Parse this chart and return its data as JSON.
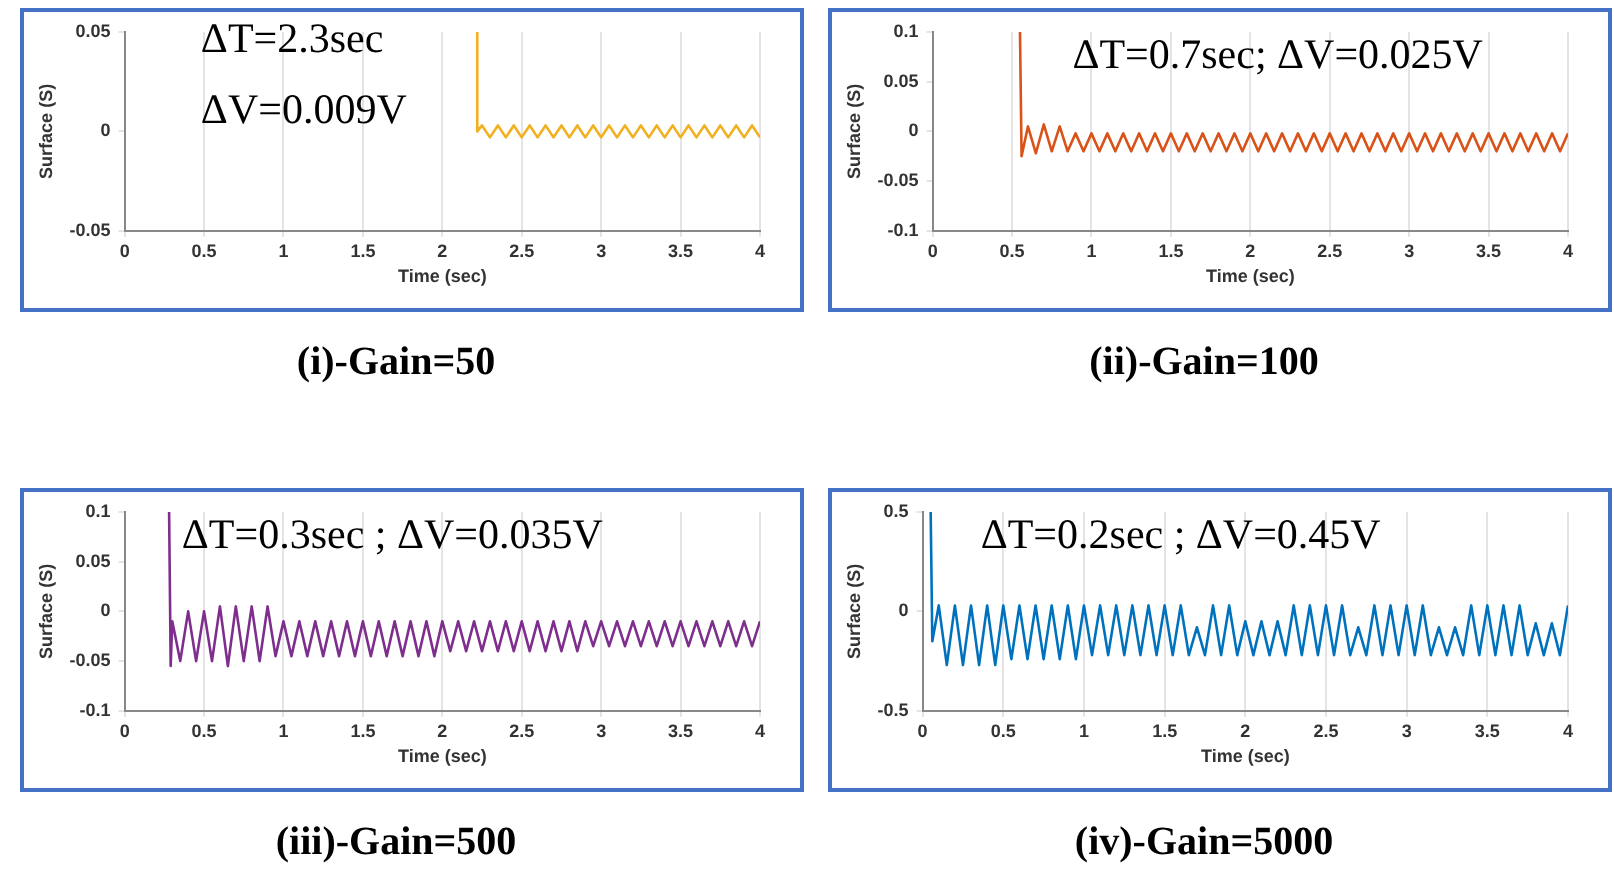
{
  "chart_data": [
    {
      "type": "line",
      "title": "(i)-Gain=50",
      "xlabel": "Time (sec)",
      "ylabel": "Surface (S)",
      "annotations": [
        "ΔT=2.3sec",
        "ΔV=0.009V"
      ],
      "xlim": [
        0,
        4
      ],
      "xticks": [
        0,
        0.5,
        1,
        1.5,
        2,
        2.5,
        3,
        3.5,
        4
      ],
      "ylim": [
        -0.05,
        0.05
      ],
      "yticks": [
        -0.05,
        0,
        0.05
      ],
      "grid": "x",
      "marker": "none",
      "x": [
        2.22,
        2.22,
        2.25,
        2.3,
        2.35,
        2.4,
        2.45,
        2.5,
        2.55,
        2.6,
        2.65,
        2.7,
        2.75,
        2.8,
        2.85,
        2.9,
        2.95,
        3,
        3.05,
        3.1,
        3.15,
        3.2,
        3.25,
        3.3,
        3.35,
        3.4,
        3.45,
        3.5,
        3.55,
        3.6,
        3.65,
        3.7,
        3.75,
        3.8,
        3.85,
        3.9,
        3.95,
        4
      ],
      "series": [
        {
          "color": "#f0b020",
          "values": [
            0.05,
            0,
            0.003,
            -0.003,
            0.003,
            -0.003,
            0.003,
            -0.003,
            0.003,
            -0.003,
            0.003,
            -0.003,
            0.003,
            -0.003,
            0.003,
            -0.003,
            0.003,
            -0.003,
            0.003,
            -0.003,
            0.003,
            -0.003,
            0.003,
            -0.003,
            0.003,
            -0.003,
            0.003,
            -0.003,
            0.003,
            -0.003,
            0.003,
            -0.003,
            0.003,
            -0.003,
            0.003,
            -0.003,
            0.003,
            -0.003
          ]
        }
      ]
    },
    {
      "type": "line",
      "title": "(ii)-Gain=100",
      "xlabel": "Time (sec)",
      "ylabel": "Surface (S)",
      "annotations": [
        "ΔT=0.7sec; ΔV=0.025V"
      ],
      "xlim": [
        0,
        4
      ],
      "xticks": [
        0,
        0.5,
        1,
        1.5,
        2,
        2.5,
        3,
        3.5,
        4
      ],
      "ylim": [
        -0.1,
        0.1
      ],
      "yticks": [
        -0.1,
        -0.05,
        0,
        0.05,
        0.1
      ],
      "grid": "x",
      "marker": "none",
      "x": [
        0.55,
        0.56,
        0.6,
        0.65,
        0.7,
        0.75,
        0.8,
        0.85,
        0.9,
        0.95,
        1,
        1.05,
        1.1,
        1.15,
        1.2,
        1.25,
        1.3,
        1.35,
        1.4,
        1.45,
        1.5,
        1.55,
        1.6,
        1.65,
        1.7,
        1.75,
        1.8,
        1.85,
        1.9,
        1.95,
        2,
        2.05,
        2.1,
        2.15,
        2.2,
        2.25,
        2.3,
        2.35,
        2.4,
        2.45,
        2.5,
        2.55,
        2.6,
        2.65,
        2.7,
        2.75,
        2.8,
        2.85,
        2.9,
        2.95,
        3,
        3.05,
        3.1,
        3.15,
        3.2,
        3.25,
        3.3,
        3.35,
        3.4,
        3.45,
        3.5,
        3.55,
        3.6,
        3.65,
        3.7,
        3.75,
        3.8,
        3.85,
        3.9,
        3.95,
        4
      ],
      "series": [
        {
          "color": "#d95319",
          "values": [
            0.1,
            -0.025,
            0.005,
            -0.022,
            0.007,
            -0.02,
            0.005,
            -0.02,
            -0.002,
            -0.02,
            -0.002,
            -0.02,
            -0.002,
            -0.02,
            -0.002,
            -0.02,
            -0.002,
            -0.02,
            -0.002,
            -0.02,
            -0.002,
            -0.02,
            -0.002,
            -0.02,
            -0.002,
            -0.02,
            -0.002,
            -0.02,
            -0.002,
            -0.02,
            -0.002,
            -0.02,
            -0.002,
            -0.02,
            -0.002,
            -0.02,
            -0.002,
            -0.02,
            -0.002,
            -0.02,
            -0.002,
            -0.02,
            -0.002,
            -0.02,
            -0.002,
            -0.02,
            -0.002,
            -0.02,
            -0.002,
            -0.02,
            -0.002,
            -0.02,
            -0.002,
            -0.02,
            -0.002,
            -0.02,
            -0.002,
            -0.02,
            -0.002,
            -0.02,
            -0.002,
            -0.02,
            -0.002,
            -0.02,
            -0.002,
            -0.02,
            -0.002,
            -0.02,
            -0.002,
            -0.02,
            -0.002
          ]
        }
      ]
    },
    {
      "type": "line",
      "title": "(iii)-Gain=500",
      "xlabel": "Time (sec)",
      "ylabel": "Surface (S)",
      "annotations": [
        "ΔT=0.3sec ; ΔV=0.035V"
      ],
      "xlim": [
        0,
        4
      ],
      "xticks": [
        0,
        0.5,
        1,
        1.5,
        2,
        2.5,
        3,
        3.5,
        4
      ],
      "ylim": [
        -0.1,
        0.1
      ],
      "yticks": [
        -0.1,
        -0.05,
        0,
        0.05,
        0.1
      ],
      "grid": "x",
      "marker": "none",
      "x": [
        0.28,
        0.29,
        0.3,
        0.35,
        0.4,
        0.45,
        0.5,
        0.55,
        0.6,
        0.65,
        0.7,
        0.75,
        0.8,
        0.85,
        0.9,
        0.95,
        1,
        1.05,
        1.1,
        1.15,
        1.2,
        1.25,
        1.3,
        1.35,
        1.4,
        1.45,
        1.5,
        1.55,
        1.6,
        1.65,
        1.7,
        1.75,
        1.8,
        1.85,
        1.9,
        1.95,
        2,
        2.05,
        2.1,
        2.15,
        2.2,
        2.25,
        2.3,
        2.35,
        2.4,
        2.45,
        2.5,
        2.55,
        2.6,
        2.65,
        2.7,
        2.75,
        2.8,
        2.85,
        2.9,
        2.95,
        3,
        3.05,
        3.1,
        3.15,
        3.2,
        3.25,
        3.3,
        3.35,
        3.4,
        3.45,
        3.5,
        3.55,
        3.6,
        3.65,
        3.7,
        3.75,
        3.8,
        3.85,
        3.9,
        3.95,
        4
      ],
      "series": [
        {
          "color": "#7e2f8e",
          "values": [
            0.1,
            -0.055,
            -0.01,
            -0.05,
            0,
            -0.05,
            0,
            -0.05,
            0.005,
            -0.055,
            0.005,
            -0.05,
            0.005,
            -0.05,
            0.005,
            -0.045,
            -0.01,
            -0.045,
            -0.01,
            -0.045,
            -0.01,
            -0.045,
            -0.01,
            -0.045,
            -0.01,
            -0.045,
            -0.01,
            -0.045,
            -0.01,
            -0.045,
            -0.01,
            -0.045,
            -0.01,
            -0.045,
            -0.01,
            -0.045,
            -0.01,
            -0.04,
            -0.01,
            -0.04,
            -0.01,
            -0.04,
            -0.01,
            -0.04,
            -0.01,
            -0.04,
            -0.01,
            -0.04,
            -0.01,
            -0.04,
            -0.01,
            -0.04,
            -0.01,
            -0.04,
            -0.01,
            -0.035,
            -0.01,
            -0.035,
            -0.01,
            -0.035,
            -0.01,
            -0.035,
            -0.01,
            -0.035,
            -0.01,
            -0.035,
            -0.01,
            -0.035,
            -0.01,
            -0.035,
            -0.01,
            -0.035,
            -0.01,
            -0.035,
            -0.01,
            -0.035,
            -0.01
          ]
        }
      ]
    },
    {
      "type": "line",
      "title": "(iv)-Gain=5000",
      "xlabel": "Time (sec)",
      "ylabel": "Surface (S)",
      "annotations": [
        "ΔT=0.2sec ; ΔV=0.45V"
      ],
      "xlim": [
        0,
        4
      ],
      "xticks": [
        0,
        0.5,
        1,
        1.5,
        2,
        2.5,
        3,
        3.5,
        4
      ],
      "ylim": [
        -0.5,
        0.5
      ],
      "yticks": [
        -0.5,
        0,
        0.5
      ],
      "grid": "x",
      "marker": "none",
      "x": [
        0.05,
        0.06,
        0.1,
        0.15,
        0.2,
        0.25,
        0.3,
        0.35,
        0.4,
        0.45,
        0.5,
        0.55,
        0.6,
        0.65,
        0.7,
        0.75,
        0.8,
        0.85,
        0.9,
        0.95,
        1,
        1.05,
        1.1,
        1.15,
        1.2,
        1.25,
        1.3,
        1.35,
        1.4,
        1.45,
        1.5,
        1.55,
        1.6,
        1.65,
        1.7,
        1.75,
        1.8,
        1.85,
        1.9,
        1.95,
        2,
        2.05,
        2.1,
        2.15,
        2.2,
        2.25,
        2.3,
        2.35,
        2.4,
        2.45,
        2.5,
        2.55,
        2.6,
        2.65,
        2.7,
        2.75,
        2.8,
        2.85,
        2.9,
        2.95,
        3,
        3.05,
        3.1,
        3.15,
        3.2,
        3.25,
        3.3,
        3.35,
        3.4,
        3.45,
        3.5,
        3.55,
        3.6,
        3.65,
        3.7,
        3.75,
        3.8,
        3.85,
        3.9,
        3.95,
        4
      ],
      "series": [
        {
          "color": "#0072bd",
          "values": [
            0.5,
            -0.15,
            0.03,
            -0.27,
            0.03,
            -0.27,
            0.03,
            -0.27,
            0.03,
            -0.27,
            0.03,
            -0.24,
            0.03,
            -0.24,
            0.03,
            -0.24,
            0.03,
            -0.24,
            0.03,
            -0.24,
            0.03,
            -0.22,
            0.03,
            -0.22,
            0.03,
            -0.22,
            0.03,
            -0.22,
            0.03,
            -0.22,
            0.03,
            -0.22,
            0.03,
            -0.22,
            -0.08,
            -0.22,
            0.03,
            -0.22,
            0.03,
            -0.22,
            -0.05,
            -0.22,
            -0.05,
            -0.22,
            -0.05,
            -0.22,
            0.03,
            -0.22,
            0.03,
            -0.22,
            0.03,
            -0.22,
            0.03,
            -0.22,
            -0.08,
            -0.22,
            0.03,
            -0.22,
            0.03,
            -0.22,
            0.03,
            -0.22,
            0.03,
            -0.22,
            -0.08,
            -0.22,
            -0.08,
            -0.22,
            0.03,
            -0.22,
            0.03,
            -0.22,
            0.03,
            -0.22,
            0.03,
            -0.22,
            -0.06,
            -0.22,
            -0.06,
            -0.22,
            0.03
          ]
        }
      ]
    }
  ]
}
